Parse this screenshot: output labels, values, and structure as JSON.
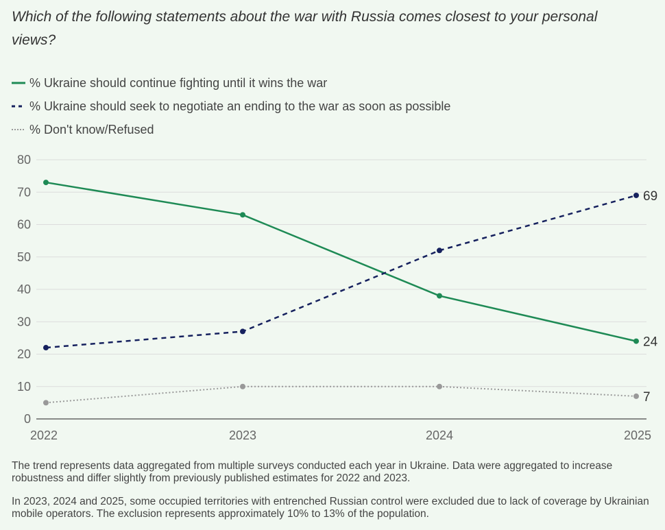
{
  "title": "Which of the following statements about the war with Russia comes closest to your personal views?",
  "legend": [
    {
      "label": "% Ukraine should continue fighting until it wins the war",
      "style": "solid",
      "color": "#1e8a55"
    },
    {
      "label": "% Ukraine should seek to negotiate an ending to the war as soon as possible",
      "style": "dashed",
      "color": "#16215e"
    },
    {
      "label": "% Don't know/Refused",
      "style": "dotted",
      "color": "#999999"
    }
  ],
  "chart_data": {
    "type": "line",
    "title": "Which of the following statements about the war with Russia comes closest to your personal views?",
    "xlabel": "",
    "ylabel": "",
    "x": [
      "2022",
      "2023",
      "2024",
      "2025"
    ],
    "ylim": [
      0,
      80
    ],
    "yticks": [
      0,
      10,
      20,
      30,
      40,
      50,
      60,
      70,
      80
    ],
    "grid": true,
    "legend_position": "top-left",
    "series": [
      {
        "name": "% Ukraine should continue fighting until it wins the war",
        "values": [
          73,
          63,
          38,
          24
        ],
        "color": "#1e8a55",
        "style": "solid",
        "end_label": "24"
      },
      {
        "name": "% Ukraine should seek to negotiate an ending to the war as soon as possible",
        "values": [
          22,
          27,
          52,
          69
        ],
        "color": "#16215e",
        "style": "dashed",
        "end_label": "69"
      },
      {
        "name": "% Don't know/Refused",
        "values": [
          5,
          10,
          10,
          7
        ],
        "color": "#999999",
        "style": "dotted",
        "end_label": "7"
      }
    ]
  },
  "notes": [
    "The trend represents data aggregated from multiple surveys conducted each year in Ukraine. Data were aggregated to increase robustness and differ slightly from previously published estimates for 2022 and 2023.",
    "In 2023, 2024 and 2025, some occupied territories with entrenched Russian control were excluded due to lack of coverage by Ukrainian mobile operators. The exclusion represents approximately 10% to 13% of the population."
  ]
}
